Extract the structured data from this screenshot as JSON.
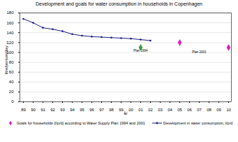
{
  "chart_data": {
    "type": "line",
    "title": "Development and goals for water consumption in households in Copenhagen",
    "x_label": "år",
    "y_label": "litre/person/day",
    "categories": [
      "89",
      "90",
      "91",
      "92",
      "93",
      "94",
      "95",
      "96",
      "97",
      "98",
      "99",
      "00",
      "01",
      "02",
      "03",
      "04",
      "05",
      "06",
      "07",
      "08",
      "09",
      "10"
    ],
    "series": [
      {
        "name": "Goals for households (l/p/d) according to Water Supply Plan 1994 and 2001",
        "type": "scatter",
        "marker": "diamond",
        "color": "#e020c0",
        "values": [
          null,
          null,
          null,
          null,
          null,
          null,
          null,
          null,
          null,
          null,
          null,
          null,
          110,
          null,
          null,
          null,
          120,
          null,
          null,
          null,
          null,
          110
        ],
        "colors": [
          null,
          null,
          null,
          null,
          null,
          null,
          null,
          null,
          null,
          null,
          null,
          null,
          "#3a9a3a",
          null,
          null,
          null,
          "#e020c0",
          null,
          null,
          null,
          null,
          "#e020c0"
        ]
      },
      {
        "name": "Development in water consumption, l/p/d",
        "type": "line",
        "marker": "circle",
        "color": "#1a1a80",
        "values": [
          168,
          160,
          150,
          147,
          143,
          137,
          134,
          132,
          131,
          130,
          129,
          128,
          126,
          124,
          null,
          null,
          null,
          null,
          null,
          null,
          null,
          null
        ]
      }
    ],
    "annotations": [
      {
        "text": "Plan 1994",
        "x": "01",
        "y": 104
      },
      {
        "text": "Plan 2001",
        "x": "07",
        "y": 101
      }
    ],
    "ylim": [
      0,
      180
    ],
    "yticks": [
      0,
      20,
      40,
      60,
      80,
      100,
      120,
      140,
      160,
      180
    ],
    "grid": true,
    "legend": "bottom"
  }
}
